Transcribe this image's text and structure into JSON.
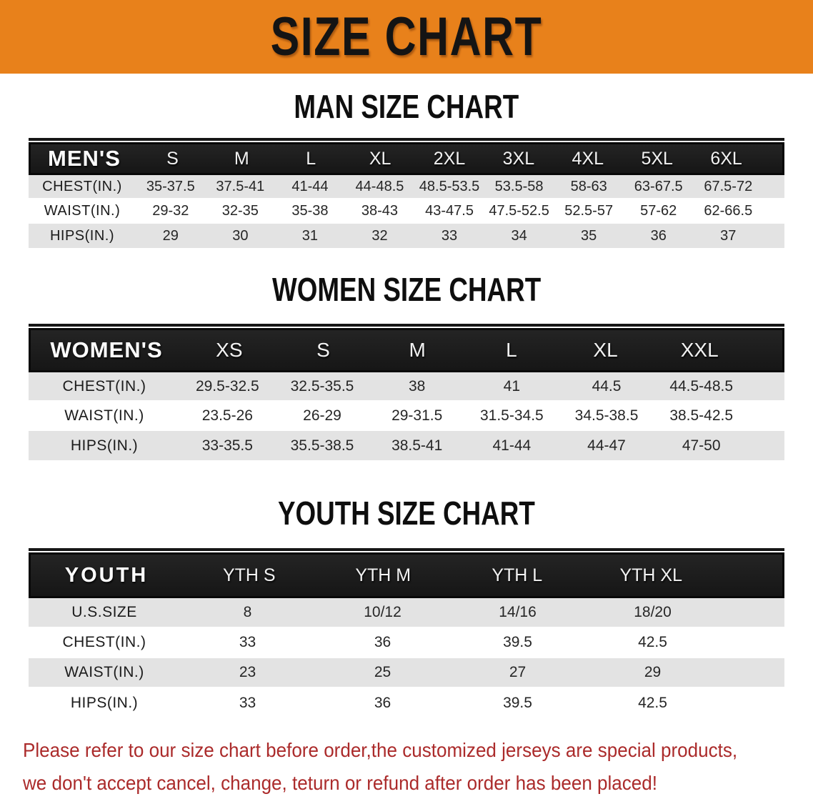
{
  "banner": {
    "title": "SIZE CHART",
    "bg_color": "#E8811B",
    "text_color": "#141414"
  },
  "sections": [
    {
      "title": "MAN SIZE CHART",
      "header_label": "MEN'S",
      "columns": [
        "S",
        "M",
        "L",
        "XL",
        "2XL",
        "3XL",
        "4XL",
        "5XL",
        "6XL"
      ],
      "rows": [
        {
          "label": "CHEST(IN.)",
          "values": [
            "35-37.5",
            "37.5-41",
            "41-44",
            "44-48.5",
            "48.5-53.5",
            "53.5-58",
            "58-63",
            "63-67.5",
            "67.5-72"
          ]
        },
        {
          "label": "WAIST(IN.)",
          "values": [
            "29-32",
            "32-35",
            "35-38",
            "38-43",
            "43-47.5",
            "47.5-52.5",
            "52.5-57",
            "57-62",
            "62-66.5"
          ]
        },
        {
          "label": "HIPS(IN.)",
          "values": [
            "29",
            "30",
            "31",
            "32",
            "33",
            "34",
            "35",
            "36",
            "37"
          ]
        }
      ]
    },
    {
      "title": "WOMEN SIZE CHART",
      "header_label": "WOMEN'S",
      "columns": [
        "XS",
        "S",
        "M",
        "L",
        "XL",
        "XXL"
      ],
      "rows": [
        {
          "label": "CHEST(IN.)",
          "values": [
            "29.5-32.5",
            "32.5-35.5",
            "38",
            "41",
            "44.5",
            "44.5-48.5"
          ]
        },
        {
          "label": "WAIST(IN.)",
          "values": [
            "23.5-26",
            "26-29",
            "29-31.5",
            "31.5-34.5",
            "34.5-38.5",
            "38.5-42.5"
          ]
        },
        {
          "label": "HIPS(IN.)",
          "values": [
            "33-35.5",
            "35.5-38.5",
            "38.5-41",
            "41-44",
            "44-47",
            "47-50"
          ]
        }
      ]
    },
    {
      "title": "YOUTH SIZE CHART",
      "header_label": "YOUTH",
      "columns": [
        "YTH S",
        "YTH M",
        "YTH L",
        "YTH XL"
      ],
      "rows": [
        {
          "label": "U.S.SIZE",
          "values": [
            "8",
            "10/12",
            "14/16",
            "18/20"
          ]
        },
        {
          "label": "CHEST(IN.)",
          "values": [
            "33",
            "36",
            "39.5",
            "42.5"
          ]
        },
        {
          "label": "WAIST(IN.)",
          "values": [
            "23",
            "25",
            "27",
            "29"
          ]
        },
        {
          "label": "HIPS(IN.)",
          "values": [
            "33",
            "36",
            "39.5",
            "42.5"
          ]
        }
      ]
    }
  ],
  "disclaimer": {
    "line1": "Please refer to our size chart before order,the customized jerseys are special products,",
    "line2": "we don't accept cancel, change, teturn or refund after order has been placed!",
    "color": "#AB2B2B"
  }
}
